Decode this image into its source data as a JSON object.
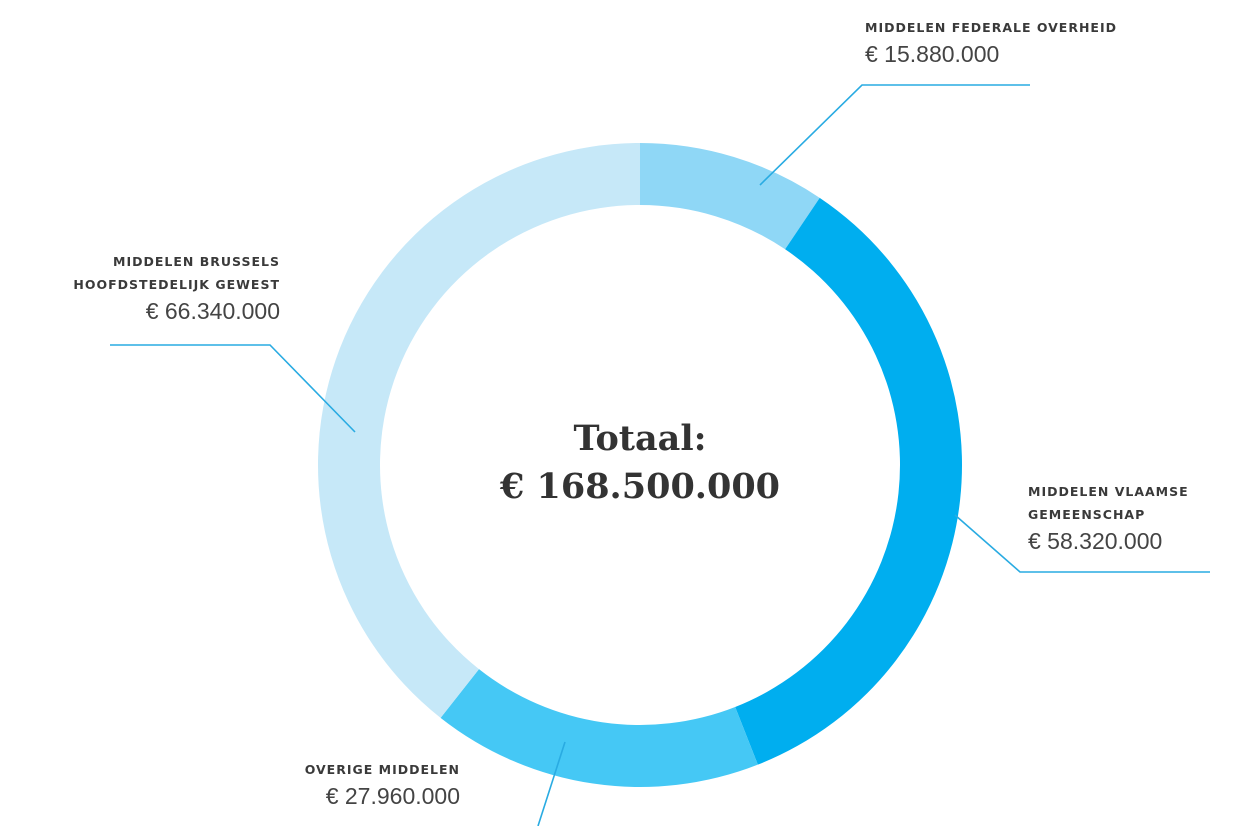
{
  "chart_data": {
    "type": "donut",
    "center_text": [
      "Totaal:",
      "€ 168.500.000"
    ],
    "series": [
      {
        "name": "MIDDELEN FEDERALE OVERHEID",
        "color": "#8fd7f6",
        "values": [
          15880000
        ],
        "value_labels": [
          "€ 15.880.000"
        ]
      },
      {
        "name": "MIDDELEN VLAAMSE GEMEENSCHAP",
        "color": "#00aeef",
        "values": [
          58320000
        ],
        "value_labels": [
          "€ 58.320.000"
        ]
      },
      {
        "name": "OVERIGE MIDDELEN",
        "color": "#45c8f5",
        "values": [
          27960000
        ],
        "value_labels": [
          "€ 27.960.000"
        ]
      },
      {
        "name": "MIDDELEN BRUSSELS HOOFDSTEDELIJK GEWEST",
        "color": "#c6e8f8",
        "values": [
          66340000
        ],
        "value_labels": [
          "€ 66.340.000"
        ]
      }
    ]
  }
}
